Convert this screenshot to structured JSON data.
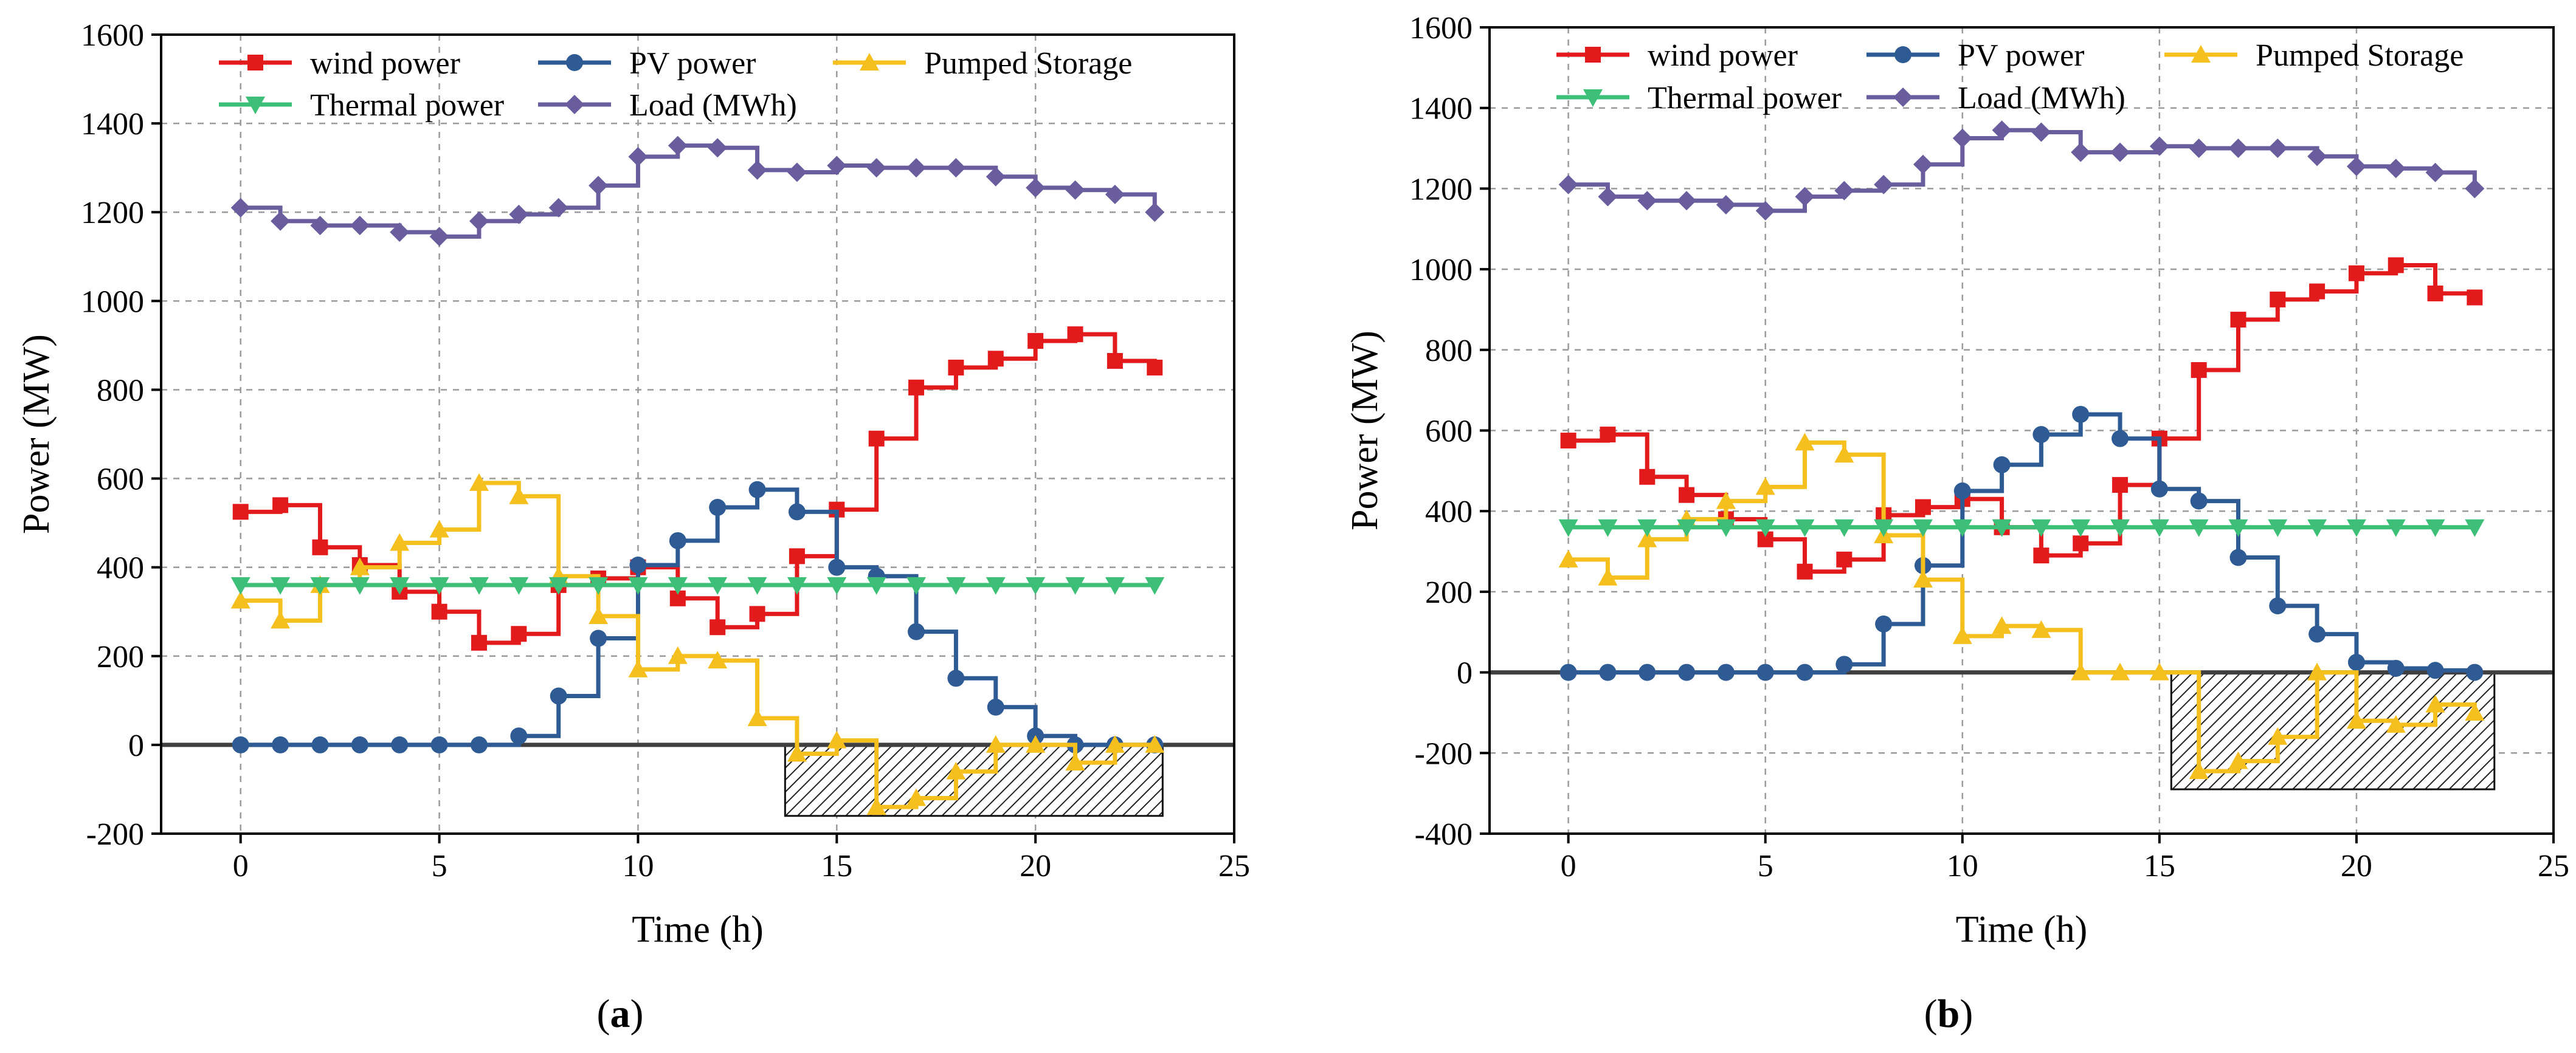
{
  "colors": {
    "wind": "#e31a1c",
    "pv": "#2e5b93",
    "pumped": "#f5bf1e",
    "thermal": "#3dbf78",
    "load": "#6a5d9e",
    "zero_line": "#404040",
    "grid": "#9a9a9a"
  },
  "chart_data": [
    {
      "type": "line",
      "step": "post",
      "panel_label": "(a)",
      "xlabel": "Time (h)",
      "ylabel": "Power (MW)",
      "xlim": [
        -2,
        25
      ],
      "ylim": [
        -200,
        1600
      ],
      "xticks": [
        "0",
        "5",
        "10",
        "15",
        "20",
        "25"
      ],
      "yticks": [
        "-200",
        "0",
        "200",
        "400",
        "600",
        "800",
        "1000",
        "1200",
        "1400",
        "1600"
      ],
      "x": [
        0,
        1,
        2,
        3,
        4,
        5,
        6,
        7,
        8,
        9,
        10,
        11,
        12,
        13,
        14,
        15,
        16,
        17,
        18,
        19,
        20,
        21,
        22,
        23
      ],
      "legend": [
        [
          {
            "key": "wind",
            "label": "wind power"
          },
          {
            "key": "pv",
            "label": "PV power"
          },
          {
            "key": "pumped",
            "label": "Pumped Storage"
          }
        ],
        [
          {
            "key": "thermal",
            "label": "Thermal power"
          },
          {
            "key": "load",
            "label": "Load (MWh)"
          }
        ]
      ],
      "shaded_region": {
        "x": [
          13.7,
          23.2
        ],
        "y": [
          -160,
          0
        ]
      },
      "series": [
        {
          "key": "wind",
          "name": "wind power",
          "marker": "square",
          "values": [
            525,
            540,
            445,
            405,
            345,
            300,
            230,
            250,
            360,
            375,
            400,
            330,
            265,
            295,
            425,
            530,
            690,
            805,
            850,
            870,
            910,
            925,
            865,
            850
          ]
        },
        {
          "key": "pv",
          "name": "PV power",
          "marker": "circle",
          "values": [
            0,
            0,
            0,
            0,
            0,
            0,
            0,
            20,
            110,
            240,
            405,
            460,
            535,
            575,
            525,
            400,
            380,
            255,
            150,
            85,
            20,
            0,
            0,
            0
          ]
        },
        {
          "key": "pumped",
          "name": "Pumped Storage",
          "marker": "triangle-up",
          "values": [
            325,
            280,
            360,
            400,
            455,
            485,
            590,
            560,
            380,
            290,
            170,
            200,
            190,
            60,
            -20,
            10,
            -140,
            -120,
            -60,
            0,
            0,
            -40,
            0,
            0
          ]
        },
        {
          "key": "thermal",
          "name": "Thermal power",
          "marker": "triangle-down",
          "values": [
            360,
            360,
            360,
            360,
            360,
            360,
            360,
            360,
            360,
            360,
            360,
            360,
            360,
            360,
            360,
            360,
            360,
            360,
            360,
            360,
            360,
            360,
            360,
            360
          ]
        },
        {
          "key": "load",
          "name": "Load (MWh)",
          "marker": "diamond",
          "values": [
            1210,
            1180,
            1170,
            1170,
            1155,
            1145,
            1180,
            1195,
            1210,
            1260,
            1325,
            1350,
            1345,
            1295,
            1290,
            1305,
            1300,
            1300,
            1300,
            1280,
            1255,
            1250,
            1240,
            1200
          ]
        }
      ]
    },
    {
      "type": "line",
      "step": "post",
      "panel_label": "(b)",
      "xlabel": "Time (h)",
      "ylabel": "Power (MW)",
      "xlim": [
        -2,
        25
      ],
      "ylim": [
        -400,
        1600
      ],
      "xticks": [
        "0",
        "5",
        "10",
        "15",
        "20",
        "25"
      ],
      "yticks": [
        "-400",
        "-200",
        "0",
        "200",
        "400",
        "600",
        "800",
        "1000",
        "1200",
        "1400",
        "1600"
      ],
      "x": [
        0,
        1,
        2,
        3,
        4,
        5,
        6,
        7,
        8,
        9,
        10,
        11,
        12,
        13,
        14,
        15,
        16,
        17,
        18,
        19,
        20,
        21,
        22,
        23
      ],
      "legend": [
        [
          {
            "key": "wind",
            "label": "wind power"
          },
          {
            "key": "pv",
            "label": "PV power"
          },
          {
            "key": "pumped",
            "label": "Pumped Storage"
          }
        ],
        [
          {
            "key": "thermal",
            "label": "Thermal power"
          },
          {
            "key": "load",
            "label": "Load (MWh)"
          }
        ]
      ],
      "shaded_region": {
        "x": [
          15.3,
          23.5
        ],
        "y": [
          -290,
          0
        ]
      },
      "series": [
        {
          "key": "wind",
          "name": "wind power",
          "marker": "square",
          "values": [
            575,
            590,
            485,
            440,
            380,
            330,
            250,
            280,
            390,
            410,
            430,
            360,
            290,
            320,
            465,
            580,
            750,
            875,
            925,
            945,
            990,
            1010,
            940,
            930
          ]
        },
        {
          "key": "pv",
          "name": "PV power",
          "marker": "circle",
          "values": [
            0,
            0,
            0,
            0,
            0,
            0,
            0,
            20,
            120,
            265,
            450,
            515,
            590,
            640,
            580,
            455,
            425,
            285,
            165,
            95,
            25,
            10,
            5,
            0
          ]
        },
        {
          "key": "pumped",
          "name": "Pumped Storage",
          "marker": "triangle-up",
          "values": [
            280,
            235,
            330,
            380,
            425,
            460,
            570,
            540,
            340,
            230,
            90,
            115,
            105,
            0,
            0,
            0,
            -245,
            -220,
            -160,
            0,
            -120,
            -130,
            -80,
            -100
          ]
        },
        {
          "key": "thermal",
          "name": "Thermal power",
          "marker": "triangle-down",
          "values": [
            360,
            360,
            360,
            360,
            360,
            360,
            360,
            360,
            360,
            360,
            360,
            360,
            360,
            360,
            360,
            360,
            360,
            360,
            360,
            360,
            360,
            360,
            360,
            360
          ]
        },
        {
          "key": "load",
          "name": "Load (MWh)",
          "marker": "diamond",
          "values": [
            1210,
            1180,
            1170,
            1170,
            1160,
            1145,
            1180,
            1195,
            1210,
            1260,
            1325,
            1345,
            1340,
            1290,
            1290,
            1305,
            1300,
            1300,
            1300,
            1280,
            1255,
            1250,
            1240,
            1200
          ]
        }
      ]
    }
  ]
}
